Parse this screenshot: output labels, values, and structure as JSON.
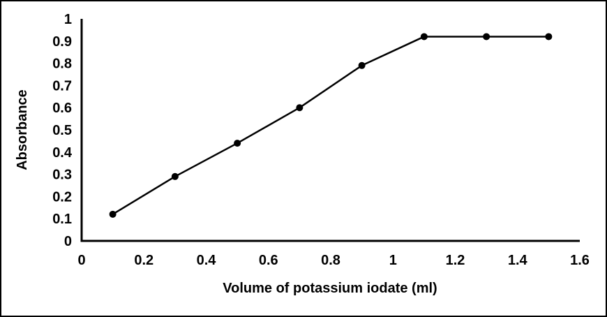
{
  "chart_data": {
    "type": "line",
    "title": "",
    "xlabel": "Volume of potassium iodate (ml)",
    "ylabel": "Absorbance",
    "x": [
      0.1,
      0.3,
      0.5,
      0.7,
      0.9,
      1.1,
      1.3,
      1.5
    ],
    "series": [
      {
        "name": "Absorbance",
        "values": [
          0.12,
          0.29,
          0.44,
          0.6,
          0.79,
          0.92,
          0.92,
          0.92
        ]
      }
    ],
    "xlim": [
      0,
      1.6
    ],
    "ylim": [
      0,
      1
    ],
    "x_tick_labels": [
      "0",
      "0.2",
      "0.4",
      "0.6",
      "0.8",
      "1",
      "1.2",
      "1.4",
      "1.6"
    ],
    "y_tick_labels": [
      "0",
      "0.1",
      "0.2",
      "0.3",
      "0.4",
      "0.5",
      "0.6",
      "0.7",
      "0.8",
      "0.9",
      "1"
    ],
    "grid": false,
    "legend": "none",
    "marker": "filled-circle",
    "colors": {
      "line": "#000000",
      "marker": "#000000",
      "axis": "#000000",
      "text": "#000000",
      "background": "#ffffff",
      "frame_border": "#000000"
    }
  }
}
